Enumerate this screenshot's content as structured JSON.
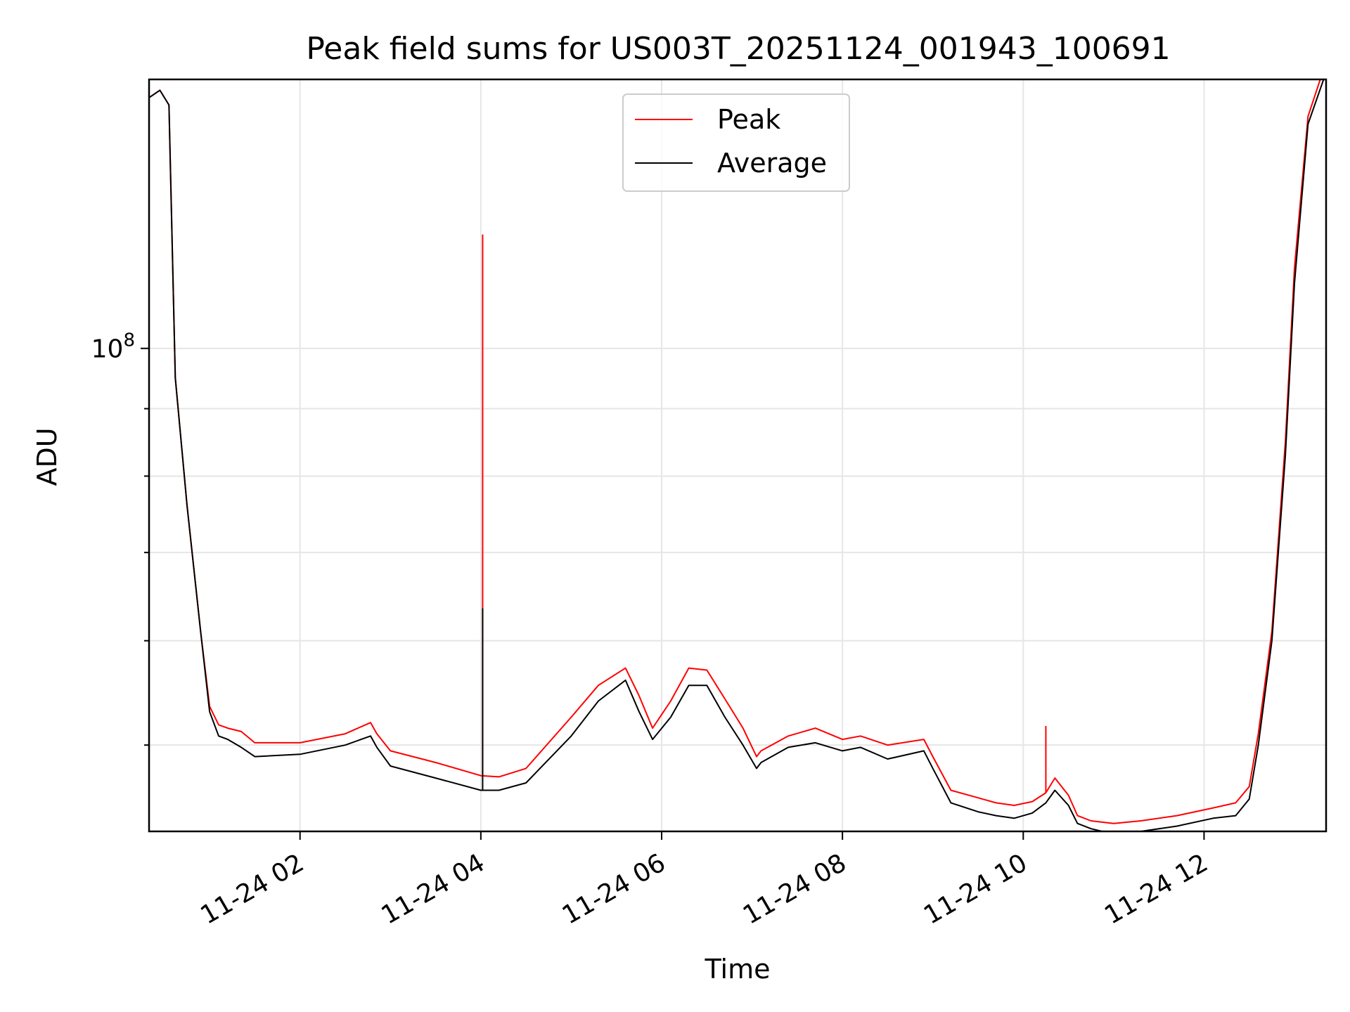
{
  "chart_data": {
    "type": "line",
    "title": "Peak field sums for US003T_20251124_001943_100691",
    "xlabel": "Time",
    "ylabel": "ADU",
    "yscale": "log",
    "grid": true,
    "legend_position": "top-center",
    "xlim_hours": [
      0.33,
      13.35
    ],
    "ylim": [
      43000000.0,
      160000000.0
    ],
    "x_ticks": [
      {
        "hour": 2,
        "label": "11-24 02"
      },
      {
        "hour": 4,
        "label": "11-24 04"
      },
      {
        "hour": 6,
        "label": "11-24 06"
      },
      {
        "hour": 8,
        "label": "11-24 08"
      },
      {
        "hour": 10,
        "label": "11-24 10"
      },
      {
        "hour": 12,
        "label": "11-24 12"
      }
    ],
    "y_major_ticks": [
      {
        "value": 100000000.0,
        "base": "10",
        "exponent": "8"
      }
    ],
    "y_minor_ticks": [
      50000000.0,
      60000000.0,
      70000000.0,
      80000000.0,
      90000000.0,
      200000000.0
    ],
    "series": [
      {
        "name": "Peak",
        "color": "#ff0000",
        "hours": [
          0.33,
          0.45,
          0.55,
          0.62,
          0.75,
          0.9,
          1.0,
          1.1,
          1.2,
          1.35,
          1.5,
          2.0,
          2.5,
          2.78,
          2.85,
          3.0,
          3.5,
          4.0,
          4.2,
          4.5,
          5.0,
          5.3,
          5.6,
          5.75,
          5.9,
          6.1,
          6.3,
          6.5,
          6.7,
          6.9,
          7.05,
          7.1,
          7.4,
          7.7,
          8.0,
          8.2,
          8.5,
          8.9,
          9.0,
          9.2,
          9.5,
          9.7,
          9.9,
          10.1,
          10.25,
          10.35,
          10.5,
          10.6,
          10.75,
          11.0,
          11.3,
          11.7,
          12.1,
          12.35,
          12.5,
          12.6,
          12.75,
          12.9,
          13.0,
          13.15,
          13.35
        ],
        "values": [
          155000000.0,
          157000000.0,
          153000000.0,
          95000000.0,
          76000000.0,
          61000000.0,
          53500000.0,
          51800000.0,
          51500000.0,
          51200000.0,
          50200000.0,
          50200000.0,
          51000000.0,
          52000000.0,
          51000000.0,
          49500000.0,
          48500000.0,
          47400000.0,
          47300000.0,
          48000000.0,
          52500000.0,
          55500000.0,
          57200000.0,
          54500000.0,
          51500000.0,
          54000000.0,
          57200000.0,
          57000000.0,
          54200000.0,
          51500000.0,
          49000000.0,
          49500000.0,
          50800000.0,
          51500000.0,
          50500000.0,
          50800000.0,
          50000000.0,
          50500000.0,
          49000000.0,
          46200000.0,
          45600000.0,
          45200000.0,
          45000000.0,
          45300000.0,
          46000000.0,
          47200000.0,
          45800000.0,
          44200000.0,
          43800000.0,
          43600000.0,
          43800000.0,
          44200000.0,
          44800000.0,
          45200000.0,
          46500000.0,
          51000000.0,
          61000000.0,
          85000000.0,
          115000000.0,
          150000000.0,
          165000000.0
        ],
        "spikes": [
          {
            "hour": 4.02,
            "value": 122000000.0
          },
          {
            "hour": 10.25,
            "value": 51700000.0
          }
        ]
      },
      {
        "name": "Average",
        "color": "#000000",
        "hours": [
          0.33,
          0.45,
          0.55,
          0.62,
          0.75,
          0.9,
          1.0,
          1.1,
          1.2,
          1.35,
          1.5,
          2.0,
          2.5,
          2.78,
          2.85,
          3.0,
          3.5,
          4.0,
          4.2,
          4.5,
          5.0,
          5.3,
          5.6,
          5.75,
          5.9,
          6.1,
          6.3,
          6.5,
          6.7,
          6.9,
          7.05,
          7.1,
          7.4,
          7.7,
          8.0,
          8.2,
          8.5,
          8.9,
          9.0,
          9.2,
          9.5,
          9.7,
          9.9,
          10.1,
          10.25,
          10.35,
          10.5,
          10.6,
          10.75,
          11.0,
          11.3,
          11.7,
          12.1,
          12.35,
          12.5,
          12.6,
          12.75,
          12.9,
          13.0,
          13.15,
          13.35
        ],
        "values": [
          155000000.0,
          157000000.0,
          153000000.0,
          95000000.0,
          76000000.0,
          61000000.0,
          53000000.0,
          50800000.0,
          50500000.0,
          49800000.0,
          49000000.0,
          49200000.0,
          50000000.0,
          50800000.0,
          49800000.0,
          48200000.0,
          47200000.0,
          46200000.0,
          46200000.0,
          46800000.0,
          50800000.0,
          54000000.0,
          56000000.0,
          53000000.0,
          50500000.0,
          52500000.0,
          55500000.0,
          55500000.0,
          52500000.0,
          50000000.0,
          48000000.0,
          48500000.0,
          49800000.0,
          50200000.0,
          49500000.0,
          49800000.0,
          48800000.0,
          49500000.0,
          48000000.0,
          45200000.0,
          44500000.0,
          44200000.0,
          44000000.0,
          44400000.0,
          45200000.0,
          46200000.0,
          45000000.0,
          43600000.0,
          43200000.0,
          42800000.0,
          43000000.0,
          43400000.0,
          44000000.0,
          44200000.0,
          45500000.0,
          50000000.0,
          60000000.0,
          83000000.0,
          112000000.0,
          148000000.0,
          162000000.0
        ],
        "spikes": [
          {
            "hour": 4.02,
            "value": 63500000.0
          }
        ]
      }
    ]
  }
}
